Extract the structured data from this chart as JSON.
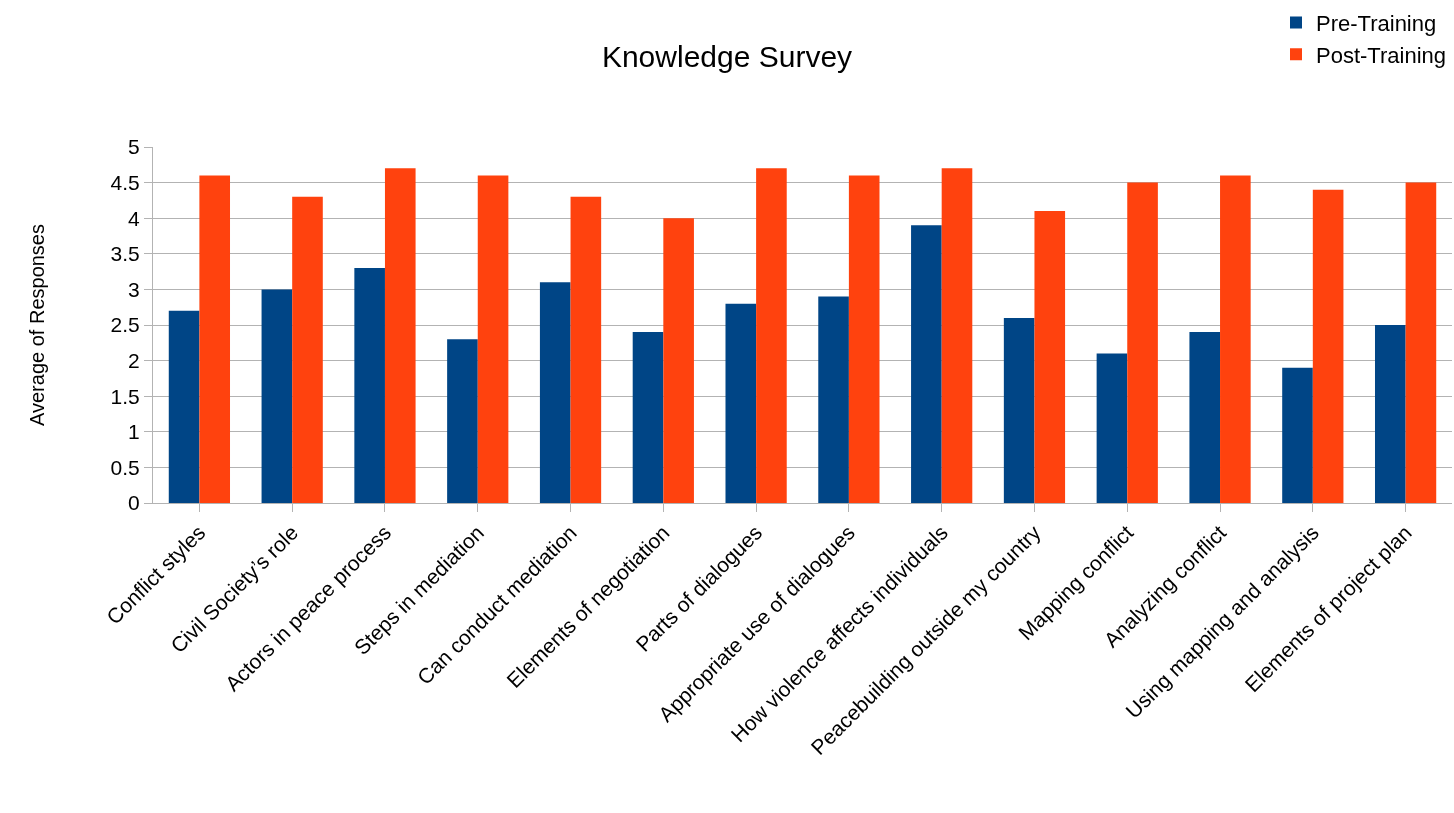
{
  "chart_data": {
    "type": "bar",
    "title": "Knowledge Survey",
    "ylabel": "Average of Responses",
    "categories": [
      "Conflict styles",
      "Civil Society’s role",
      "Actors in peace process",
      "Steps in mediation",
      "Can conduct mediation",
      "Elements of negotiation",
      "Parts of dialogues",
      "Appropriate use of dialogues",
      "How violence affects individuals",
      "Peacebuilding outside my country",
      "Mapping conflict",
      "Analyzing conflict",
      "Using mapping and analysis",
      "Elements of project plan"
    ],
    "series": [
      {
        "name": "Pre-Training",
        "color": "#004586",
        "values": [
          2.7,
          3.0,
          3.3,
          2.3,
          3.1,
          2.4,
          2.8,
          2.9,
          3.9,
          2.6,
          2.1,
          2.4,
          1.9,
          2.5
        ]
      },
      {
        "name": "Post-Training",
        "color": "#ff420e",
        "values": [
          4.6,
          4.3,
          4.7,
          4.6,
          4.3,
          4.0,
          4.7,
          4.6,
          4.7,
          4.1,
          4.5,
          4.6,
          4.4,
          4.5
        ]
      }
    ],
    "ylim": [
      0,
      5
    ],
    "yticks": [
      0,
      0.5,
      1,
      1.5,
      2,
      2.5,
      3,
      3.5,
      4,
      4.5,
      5
    ],
    "grid": "y",
    "legend": "top right"
  }
}
